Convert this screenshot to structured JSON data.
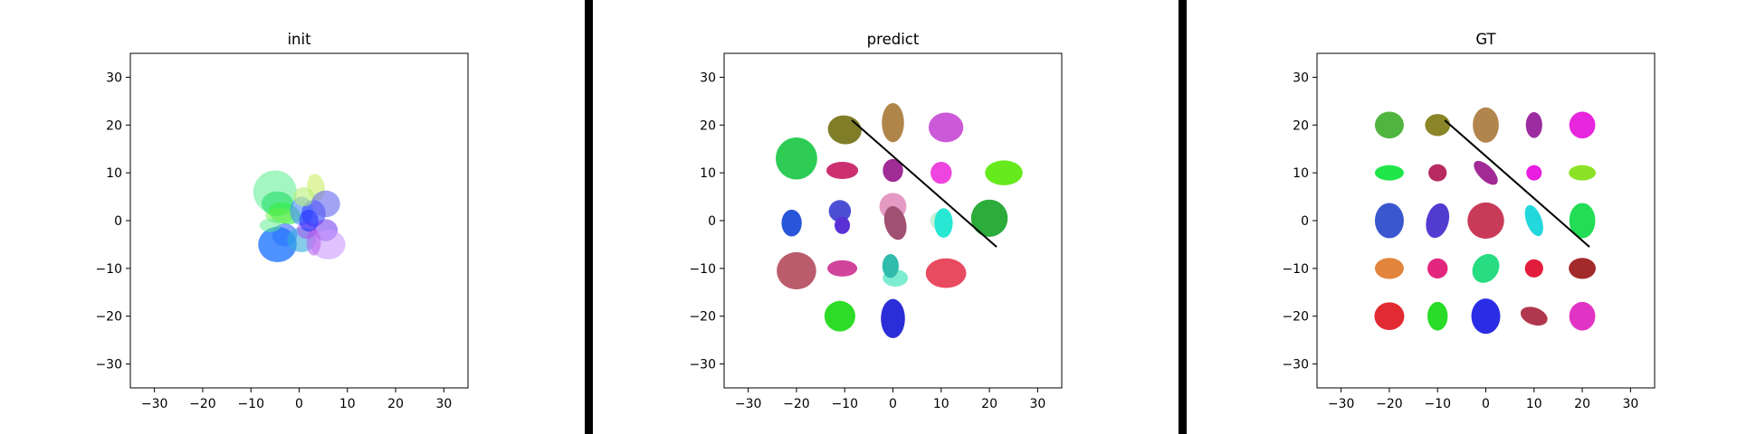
{
  "figure": {
    "background": "#ffffff",
    "divider_color": "#000000"
  },
  "chart_data": [
    {
      "type": "scatter",
      "subtype": "ellipses",
      "title": "init",
      "xlim": [
        -35,
        35
      ],
      "ylim": [
        -35,
        35
      ],
      "xticks": [
        -30,
        -20,
        -10,
        0,
        10,
        20,
        30
      ],
      "yticks": [
        -30,
        -20,
        -10,
        0,
        10,
        20,
        30
      ],
      "grid": false,
      "line": null,
      "ellipses": [
        {
          "x": -5,
          "y": 6,
          "rx": 4.5,
          "ry": 4.5,
          "angle": 0,
          "color": "#66ee99",
          "alpha": 0.6
        },
        {
          "x": 3.5,
          "y": 7,
          "rx": 1.8,
          "ry": 2.8,
          "angle": 10,
          "color": "#ccee66",
          "alpha": 0.6
        },
        {
          "x": -4.5,
          "y": 3.5,
          "rx": 3.3,
          "ry": 2.6,
          "angle": 0,
          "color": "#22dd66",
          "alpha": 0.6
        },
        {
          "x": -3,
          "y": 1.5,
          "rx": 3.4,
          "ry": 2.2,
          "angle": -15,
          "color": "#33ee44",
          "alpha": 0.6
        },
        {
          "x": -4,
          "y": 1,
          "rx": 3.0,
          "ry": 1.6,
          "angle": 0,
          "color": "#66ee44",
          "alpha": 0.5
        },
        {
          "x": 0.5,
          "y": 2,
          "rx": 2.4,
          "ry": 3.0,
          "angle": 0,
          "color": "#4488ff",
          "alpha": 0.6
        },
        {
          "x": 3,
          "y": 1.5,
          "rx": 2.5,
          "ry": 2.8,
          "angle": 0,
          "color": "#3344ff",
          "alpha": 0.6
        },
        {
          "x": 1,
          "y": 5,
          "rx": 2.2,
          "ry": 2.0,
          "angle": 0,
          "color": "#bbee77",
          "alpha": 0.6
        },
        {
          "x": 5.5,
          "y": 3.5,
          "rx": 3.0,
          "ry": 2.8,
          "angle": 0,
          "color": "#6666ee",
          "alpha": 0.6
        },
        {
          "x": 5.5,
          "y": -2,
          "rx": 2.5,
          "ry": 2.3,
          "angle": 0,
          "color": "#7744ee",
          "alpha": 0.6
        },
        {
          "x": -3,
          "y": -3,
          "rx": 2.6,
          "ry": 2.4,
          "angle": 0,
          "color": "#3366ff",
          "alpha": 0.6
        },
        {
          "x": -4.5,
          "y": -5,
          "rx": 4.0,
          "ry": 3.7,
          "angle": 0,
          "color": "#2277ff",
          "alpha": 0.8
        },
        {
          "x": 0.5,
          "y": -4,
          "rx": 3.0,
          "ry": 2.6,
          "angle": 0,
          "color": "#33aadd",
          "alpha": 0.6
        },
        {
          "x": 6,
          "y": -5,
          "rx": 3.6,
          "ry": 3.1,
          "angle": 0,
          "color": "#cc99ff",
          "alpha": 0.6
        },
        {
          "x": 3,
          "y": -4.5,
          "rx": 1.5,
          "ry": 2.8,
          "angle": 0,
          "color": "#bb66ee",
          "alpha": 0.6
        },
        {
          "x": 1.5,
          "y": -2,
          "rx": 2.0,
          "ry": 1.8,
          "angle": 0,
          "color": "#aa44ee",
          "alpha": 0.5
        },
        {
          "x": -6,
          "y": -1,
          "rx": 2.2,
          "ry": 1.4,
          "angle": 0,
          "color": "#55ee88",
          "alpha": 0.5
        },
        {
          "x": 2,
          "y": 0,
          "rx": 2.0,
          "ry": 2.3,
          "angle": 0,
          "color": "#2233ff",
          "alpha": 0.6
        }
      ]
    },
    {
      "type": "scatter",
      "subtype": "ellipses",
      "title": "predict",
      "xlim": [
        -35,
        35
      ],
      "ylim": [
        -35,
        35
      ],
      "xticks": [
        -30,
        -20,
        -10,
        0,
        10,
        20,
        30
      ],
      "yticks": [
        -30,
        -20,
        -10,
        0,
        10,
        20,
        30
      ],
      "grid": false,
      "line": {
        "x1": -8.5,
        "y1": 21,
        "x2": 21.5,
        "y2": -5.5,
        "color": "#000000"
      },
      "ellipses": [
        {
          "x": -10,
          "y": 19,
          "rx": 3.5,
          "ry": 3.0,
          "angle": -10,
          "color": "#7f7d27",
          "alpha": 1
        },
        {
          "x": 0,
          "y": 20.5,
          "rx": 2.3,
          "ry": 4.1,
          "angle": 0,
          "color": "#b0854a",
          "alpha": 1
        },
        {
          "x": 11,
          "y": 19.5,
          "rx": 3.6,
          "ry": 3.1,
          "angle": 0,
          "color": "#cc5ad8",
          "alpha": 1
        },
        {
          "x": -20,
          "y": 13,
          "rx": 4.3,
          "ry": 4.4,
          "angle": 0,
          "color": "#2ecc55",
          "alpha": 1
        },
        {
          "x": -10.5,
          "y": 10.5,
          "rx": 3.3,
          "ry": 1.8,
          "angle": 0,
          "color": "#cc3070",
          "alpha": 1
        },
        {
          "x": 0,
          "y": 10.5,
          "rx": 2.1,
          "ry": 2.4,
          "angle": 0,
          "color": "#a02c96",
          "alpha": 1
        },
        {
          "x": 10,
          "y": 10,
          "rx": 2.2,
          "ry": 2.3,
          "angle": 0,
          "color": "#ee44e0",
          "alpha": 1
        },
        {
          "x": 23,
          "y": 10,
          "rx": 3.9,
          "ry": 2.6,
          "angle": 0,
          "color": "#66ea1c",
          "alpha": 1
        },
        {
          "x": -11,
          "y": 2,
          "rx": 2.3,
          "ry": 2.3,
          "angle": 0,
          "color": "#4c4fd4",
          "alpha": 1
        },
        {
          "x": 0,
          "y": 3,
          "rx": 2.8,
          "ry": 2.8,
          "angle": 0,
          "color": "#e49ac3",
          "alpha": 1
        },
        {
          "x": 20,
          "y": 0.5,
          "rx": 3.8,
          "ry": 3.9,
          "angle": 0,
          "color": "#2cac3a",
          "alpha": 1
        },
        {
          "x": -21,
          "y": -0.5,
          "rx": 2.1,
          "ry": 2.8,
          "angle": 0,
          "color": "#2855d9",
          "alpha": 1
        },
        {
          "x": -10.5,
          "y": -1,
          "rx": 1.6,
          "ry": 1.8,
          "angle": 0,
          "color": "#5a31d6",
          "alpha": 1
        },
        {
          "x": 0.5,
          "y": -0.5,
          "rx": 2.2,
          "ry": 3.6,
          "angle": 15,
          "color": "#a05071",
          "alpha": 1
        },
        {
          "x": 10,
          "y": 0,
          "rx": 2.3,
          "ry": 2.0,
          "angle": 0,
          "color": "#c8f0d8",
          "alpha": 1
        },
        {
          "x": 10.5,
          "y": -0.5,
          "rx": 1.9,
          "ry": 3.1,
          "angle": 0,
          "color": "#28e8d4",
          "alpha": 1
        },
        {
          "x": -20,
          "y": -10.5,
          "rx": 4.1,
          "ry": 3.9,
          "angle": 0,
          "color": "#bb5c6c",
          "alpha": 1
        },
        {
          "x": -10.5,
          "y": -10,
          "rx": 3.1,
          "ry": 1.7,
          "angle": 0,
          "color": "#d0449c",
          "alpha": 1
        },
        {
          "x": 0.5,
          "y": -12,
          "rx": 2.6,
          "ry": 1.8,
          "angle": 0,
          "color": "#7eecd0",
          "alpha": 1
        },
        {
          "x": -0.5,
          "y": -9.5,
          "rx": 1.7,
          "ry": 2.5,
          "angle": 0,
          "color": "#2fbcac",
          "alpha": 1
        },
        {
          "x": 11,
          "y": -11,
          "rx": 4.2,
          "ry": 3.1,
          "angle": 0,
          "color": "#e84a60",
          "alpha": 1
        },
        {
          "x": -11,
          "y": -20,
          "rx": 3.2,
          "ry": 3.2,
          "angle": 0,
          "color": "#2ddc27",
          "alpha": 1
        },
        {
          "x": 0,
          "y": -20.5,
          "rx": 2.5,
          "ry": 4.1,
          "angle": 0,
          "color": "#2b2dd8",
          "alpha": 1
        }
      ]
    },
    {
      "type": "scatter",
      "subtype": "ellipses",
      "title": "GT",
      "xlim": [
        -35,
        35
      ],
      "ylim": [
        -35,
        35
      ],
      "xticks": [
        -30,
        -20,
        -10,
        0,
        10,
        20,
        30
      ],
      "yticks": [
        -30,
        -20,
        -10,
        0,
        10,
        20,
        30
      ],
      "grid": false,
      "line": {
        "x1": -8.5,
        "y1": 21,
        "x2": 21.5,
        "y2": -5.5,
        "color": "#000000"
      },
      "ellipses": [
        {
          "x": -20,
          "y": 20,
          "rx": 3.0,
          "ry": 2.8,
          "angle": 0,
          "color": "#50b53f",
          "alpha": 1
        },
        {
          "x": -10,
          "y": 20,
          "rx": 2.6,
          "ry": 2.3,
          "angle": 0,
          "color": "#8a8526",
          "alpha": 1
        },
        {
          "x": 0,
          "y": 20,
          "rx": 2.7,
          "ry": 3.7,
          "angle": 0,
          "color": "#b3854e",
          "alpha": 1
        },
        {
          "x": 10,
          "y": 20,
          "rx": 1.7,
          "ry": 2.7,
          "angle": 0,
          "color": "#9c2ca0",
          "alpha": 1
        },
        {
          "x": 20,
          "y": 20,
          "rx": 2.7,
          "ry": 2.8,
          "angle": 0,
          "color": "#e625dd",
          "alpha": 1
        },
        {
          "x": -20,
          "y": 10,
          "rx": 3.0,
          "ry": 1.6,
          "angle": 0,
          "color": "#20e64a",
          "alpha": 1
        },
        {
          "x": -10,
          "y": 10,
          "rx": 1.9,
          "ry": 1.8,
          "angle": 0,
          "color": "#b72b60",
          "alpha": 1
        },
        {
          "x": 0,
          "y": 10,
          "rx": 1.5,
          "ry": 3.2,
          "angle": 45,
          "color": "#a22a96",
          "alpha": 1
        },
        {
          "x": 10,
          "y": 10,
          "rx": 1.6,
          "ry": 1.6,
          "angle": 0,
          "color": "#e81ee0",
          "alpha": 1
        },
        {
          "x": 20,
          "y": 10,
          "rx": 2.8,
          "ry": 1.6,
          "angle": 0,
          "color": "#8ce227",
          "alpha": 1
        },
        {
          "x": -20,
          "y": 0,
          "rx": 3.0,
          "ry": 3.7,
          "angle": 0,
          "color": "#3b57cf",
          "alpha": 1
        },
        {
          "x": -10,
          "y": 0,
          "rx": 2.3,
          "ry": 3.7,
          "angle": -15,
          "color": "#523cd0",
          "alpha": 1
        },
        {
          "x": 0,
          "y": 0,
          "rx": 3.8,
          "ry": 3.8,
          "angle": 0,
          "color": "#c93a59",
          "alpha": 1
        },
        {
          "x": 10,
          "y": 0,
          "rx": 1.6,
          "ry": 3.4,
          "angle": 20,
          "color": "#22d8dd",
          "alpha": 1
        },
        {
          "x": 20,
          "y": 0,
          "rx": 2.7,
          "ry": 3.7,
          "angle": 0,
          "color": "#22dd55",
          "alpha": 1
        },
        {
          "x": -20,
          "y": -10,
          "rx": 3.0,
          "ry": 2.2,
          "angle": 0,
          "color": "#e2843b",
          "alpha": 1
        },
        {
          "x": -10,
          "y": -10,
          "rx": 2.1,
          "ry": 2.1,
          "angle": 0,
          "color": "#e2267e",
          "alpha": 1
        },
        {
          "x": 0,
          "y": -10,
          "rx": 2.6,
          "ry": 3.2,
          "angle": -35,
          "color": "#28dc82",
          "alpha": 1
        },
        {
          "x": 10,
          "y": -10,
          "rx": 1.9,
          "ry": 1.9,
          "angle": 20,
          "color": "#e21d3c",
          "alpha": 1
        },
        {
          "x": 20,
          "y": -10,
          "rx": 2.8,
          "ry": 2.2,
          "angle": 0,
          "color": "#a32a2a",
          "alpha": 1
        },
        {
          "x": -20,
          "y": -20,
          "rx": 3.1,
          "ry": 2.9,
          "angle": 0,
          "color": "#e22a32",
          "alpha": 1
        },
        {
          "x": -10,
          "y": -20,
          "rx": 2.1,
          "ry": 3.0,
          "angle": 0,
          "color": "#28dc28",
          "alpha": 1
        },
        {
          "x": 0,
          "y": -20,
          "rx": 3.0,
          "ry": 3.7,
          "angle": 0,
          "color": "#2b2de4",
          "alpha": 1
        },
        {
          "x": 10,
          "y": -20,
          "rx": 2.9,
          "ry": 1.8,
          "angle": -20,
          "color": "#b0384e",
          "alpha": 1
        },
        {
          "x": 20,
          "y": -20,
          "rx": 2.7,
          "ry": 3.0,
          "angle": 0,
          "color": "#e234c4",
          "alpha": 1
        }
      ]
    }
  ]
}
